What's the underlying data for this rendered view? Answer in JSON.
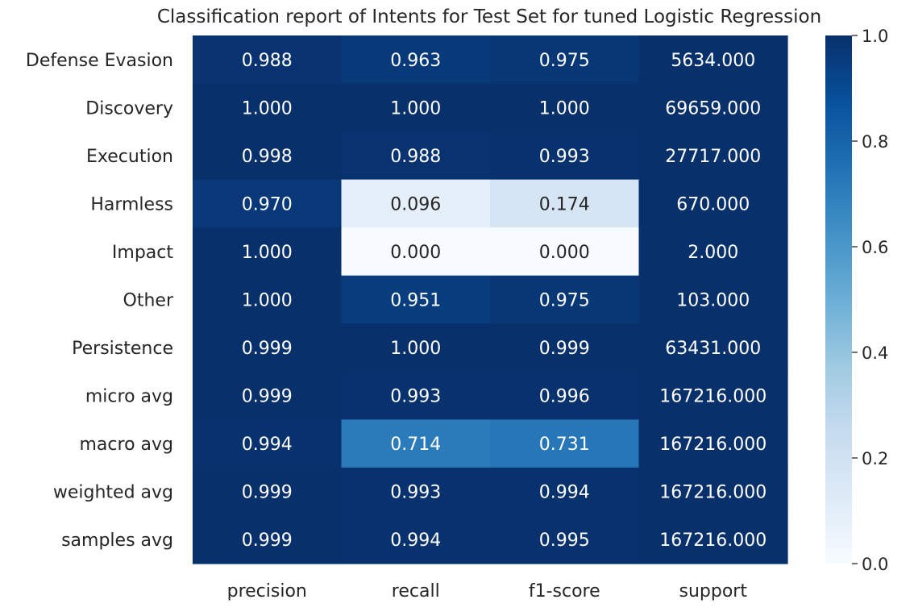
{
  "chart_data": {
    "type": "heatmap",
    "title": "Classification report of Intents for Test Set for tuned Logistic Regression",
    "rows": [
      "Defense Evasion",
      "Discovery",
      "Execution",
      "Harmless",
      "Impact",
      "Other",
      "Persistence",
      "micro avg",
      "macro avg",
      "weighted avg",
      "samples avg"
    ],
    "columns": [
      "precision",
      "recall",
      "f1-score",
      "support"
    ],
    "values": [
      [
        0.988,
        0.963,
        0.975,
        5634.0
      ],
      [
        1.0,
        1.0,
        1.0,
        69659.0
      ],
      [
        0.998,
        0.988,
        0.993,
        27717.0
      ],
      [
        0.97,
        0.096,
        0.174,
        670.0
      ],
      [
        1.0,
        0.0,
        0.0,
        2.0
      ],
      [
        1.0,
        0.951,
        0.975,
        103.0
      ],
      [
        0.999,
        1.0,
        0.999,
        63431.0
      ],
      [
        0.999,
        0.993,
        0.996,
        167216.0
      ],
      [
        0.994,
        0.714,
        0.731,
        167216.0
      ],
      [
        0.999,
        0.993,
        0.994,
        167216.0
      ],
      [
        0.999,
        0.994,
        0.995,
        167216.0
      ]
    ],
    "cell_labels": [
      [
        "0.988",
        "0.963",
        "0.975",
        "5634.000"
      ],
      [
        "1.000",
        "1.000",
        "1.000",
        "69659.000"
      ],
      [
        "0.998",
        "0.988",
        "0.993",
        "27717.000"
      ],
      [
        "0.970",
        "0.096",
        "0.174",
        "670.000"
      ],
      [
        "1.000",
        "0.000",
        "0.000",
        "2.000"
      ],
      [
        "1.000",
        "0.951",
        "0.975",
        "103.000"
      ],
      [
        "0.999",
        "1.000",
        "0.999",
        "63431.000"
      ],
      [
        "0.999",
        "0.993",
        "0.996",
        "167216.000"
      ],
      [
        "0.994",
        "0.714",
        "0.731",
        "167216.000"
      ],
      [
        "0.999",
        "0.993",
        "0.994",
        "167216.000"
      ],
      [
        "0.999",
        "0.994",
        "0.995",
        "167216.000"
      ]
    ],
    "colorscale": "Blues",
    "vmin": 0.0,
    "vmax": 1.0,
    "colorbar_ticks": [
      "0.0",
      "0.2",
      "0.4",
      "0.6",
      "0.8",
      "1.0"
    ],
    "grid": false,
    "legend": "colorbar-right"
  }
}
